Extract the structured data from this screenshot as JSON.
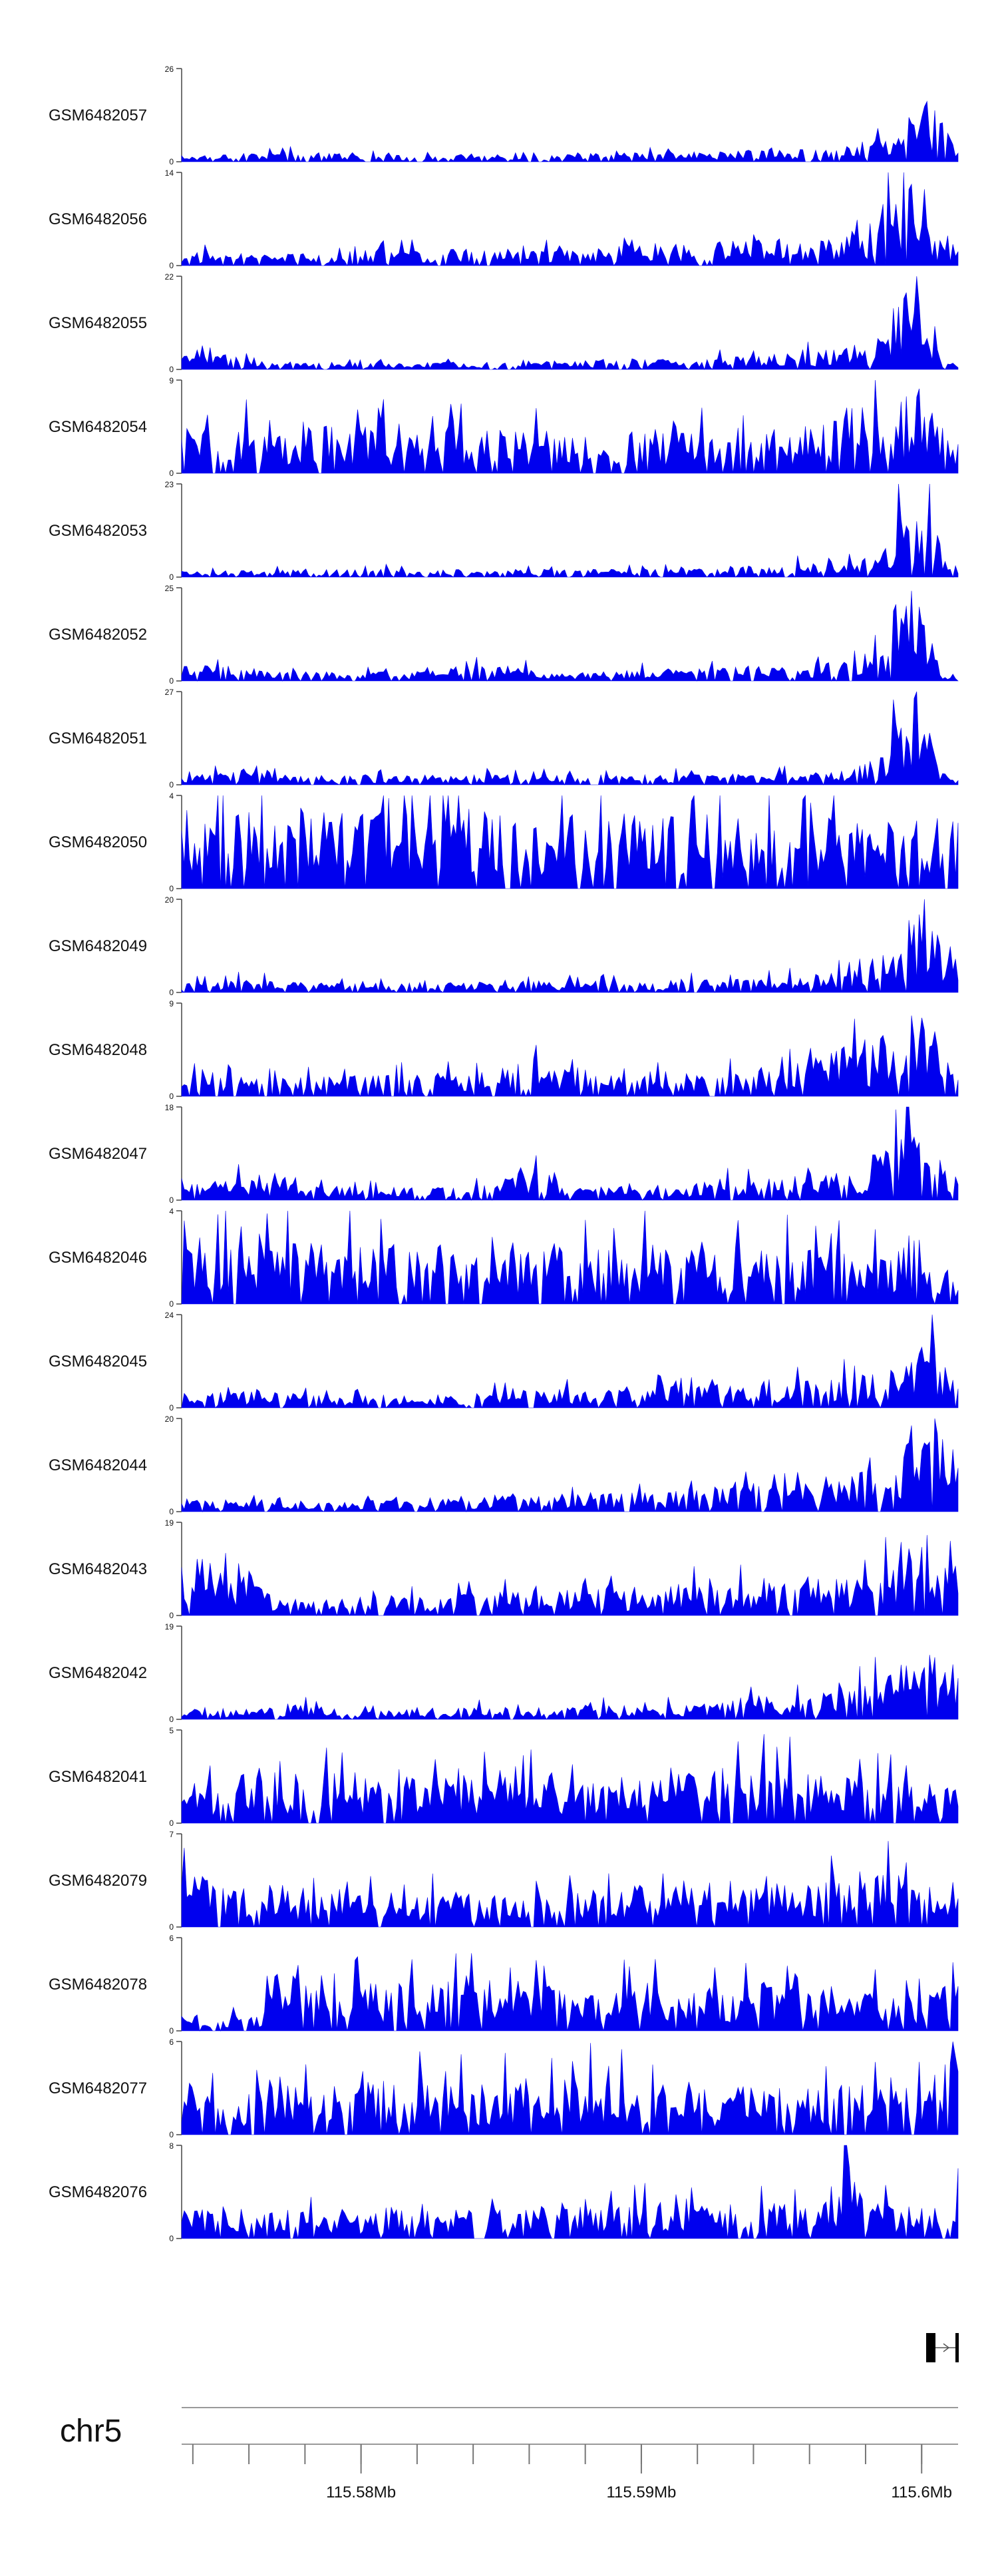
{
  "colors": {
    "signal": "#0000ee",
    "axis": "#444444",
    "text": "#111111",
    "genome_line": "#999999"
  },
  "chart_data": {
    "type": "area",
    "title": "",
    "xlabel": "",
    "ylabel": "",
    "x_range_mb": [
      115.5736,
      115.6013
    ],
    "tracks": [
      {
        "name": "GSM6482057",
        "ylim": [
          0,
          26
        ],
        "yticks": [
          "0",
          "26"
        ],
        "profile": [
          [
            0,
            2
          ],
          [
            12,
            3
          ],
          [
            25,
            2
          ],
          [
            40,
            1.5
          ],
          [
            55,
            2.5
          ],
          [
            70,
            3
          ],
          [
            85,
            4
          ],
          [
            90,
            7
          ],
          [
            92,
            13
          ],
          [
            94,
            22
          ],
          [
            95,
            26
          ],
          [
            96,
            19
          ],
          [
            98,
            10
          ],
          [
            100,
            3
          ]
        ]
      },
      {
        "name": "GSM6482056",
        "ylim": [
          0,
          14
        ],
        "yticks": [
          "0",
          "14"
        ],
        "profile": [
          [
            0,
            2
          ],
          [
            15,
            2
          ],
          [
            30,
            2.5
          ],
          [
            50,
            2.5
          ],
          [
            65,
            3.5
          ],
          [
            75,
            4
          ],
          [
            84,
            4.5
          ],
          [
            89,
            6
          ],
          [
            91,
            11
          ],
          [
            93,
            14
          ],
          [
            95,
            9
          ],
          [
            97,
            4
          ],
          [
            100,
            3
          ]
        ]
      },
      {
        "name": "GSM6482055",
        "ylim": [
          0,
          22
        ],
        "yticks": [
          "0",
          "22"
        ],
        "profile": [
          [
            0,
            5
          ],
          [
            5,
            4.5
          ],
          [
            10,
            2
          ],
          [
            25,
            1.5
          ],
          [
            45,
            2
          ],
          [
            65,
            2.5
          ],
          [
            80,
            4
          ],
          [
            88,
            6
          ],
          [
            90,
            10
          ],
          [
            92,
            20
          ],
          [
            94,
            22
          ],
          [
            96,
            13
          ],
          [
            98,
            2
          ],
          [
            100,
            1
          ]
        ]
      },
      {
        "name": "GSM6482054",
        "ylim": [
          0,
          9
        ],
        "yticks": [
          "0",
          "9"
        ],
        "profile": [
          [
            0,
            4.5
          ],
          [
            20,
            4.5
          ],
          [
            40,
            4.5
          ],
          [
            60,
            4
          ],
          [
            75,
            4.5
          ],
          [
            84,
            5.5
          ],
          [
            88,
            7.5
          ],
          [
            92,
            6.5
          ],
          [
            95,
            8.5
          ],
          [
            98,
            4.5
          ],
          [
            100,
            4
          ]
        ]
      },
      {
        "name": "GSM6482053",
        "ylim": [
          0,
          23
        ],
        "yticks": [
          "0",
          "23"
        ],
        "profile": [
          [
            0,
            1.5
          ],
          [
            20,
            2
          ],
          [
            40,
            2
          ],
          [
            60,
            2
          ],
          [
            75,
            3
          ],
          [
            85,
            4
          ],
          [
            90,
            7
          ],
          [
            93,
            18
          ],
          [
            95,
            23
          ],
          [
            97,
            13
          ],
          [
            99,
            3
          ],
          [
            100,
            2
          ]
        ]
      },
      {
        "name": "GSM6482052",
        "ylim": [
          0,
          25
        ],
        "yticks": [
          "0",
          "25"
        ],
        "profile": [
          [
            0,
            4
          ],
          [
            6,
            5
          ],
          [
            12,
            2.5
          ],
          [
            30,
            2.5
          ],
          [
            40,
            5
          ],
          [
            50,
            2
          ],
          [
            65,
            4
          ],
          [
            80,
            4.5
          ],
          [
            88,
            6
          ],
          [
            92,
            15
          ],
          [
            94,
            25
          ],
          [
            96,
            15
          ],
          [
            98,
            3
          ],
          [
            100,
            1.5
          ]
        ]
      },
      {
        "name": "GSM6482051",
        "ylim": [
          0,
          27
        ],
        "yticks": [
          "0",
          "27"
        ],
        "profile": [
          [
            0,
            3
          ],
          [
            8,
            5
          ],
          [
            15,
            2.5
          ],
          [
            35,
            3
          ],
          [
            55,
            3
          ],
          [
            70,
            3
          ],
          [
            85,
            4
          ],
          [
            90,
            8
          ],
          [
            92,
            18
          ],
          [
            94,
            27
          ],
          [
            96,
            18
          ],
          [
            98,
            4
          ],
          [
            100,
            1.5
          ]
        ]
      },
      {
        "name": "GSM6482050",
        "ylim": [
          0,
          4
        ],
        "yticks": [
          "0",
          "4"
        ],
        "profile": [
          [
            0,
            3
          ],
          [
            15,
            3.5
          ],
          [
            30,
            3.2
          ],
          [
            50,
            3.2
          ],
          [
            58,
            3.8
          ],
          [
            62,
            3.2
          ],
          [
            75,
            3
          ],
          [
            90,
            3
          ],
          [
            100,
            3
          ]
        ]
      },
      {
        "name": "GSM6482049",
        "ylim": [
          0,
          20
        ],
        "yticks": [
          "0",
          "20"
        ],
        "profile": [
          [
            0,
            2.5
          ],
          [
            10,
            3
          ],
          [
            20,
            2
          ],
          [
            40,
            2.5
          ],
          [
            60,
            2.5
          ],
          [
            75,
            3
          ],
          [
            88,
            5
          ],
          [
            92,
            12
          ],
          [
            95,
            20
          ],
          [
            97,
            12
          ],
          [
            100,
            4
          ]
        ]
      },
      {
        "name": "GSM6482048",
        "ylim": [
          0,
          9
        ],
        "yticks": [
          "0",
          "9"
        ],
        "profile": [
          [
            0,
            2
          ],
          [
            20,
            2
          ],
          [
            40,
            2.5
          ],
          [
            45,
            4
          ],
          [
            55,
            2
          ],
          [
            70,
            2.5
          ],
          [
            80,
            3.5
          ],
          [
            90,
            6
          ],
          [
            94,
            8.5
          ],
          [
            96,
            6
          ],
          [
            100,
            3
          ]
        ]
      },
      {
        "name": "GSM6482047",
        "ylim": [
          0,
          18
        ],
        "yticks": [
          "0",
          "18"
        ],
        "profile": [
          [
            0,
            3
          ],
          [
            8,
            5
          ],
          [
            15,
            3
          ],
          [
            25,
            2.5
          ],
          [
            40,
            3
          ],
          [
            45,
            7
          ],
          [
            50,
            2.5
          ],
          [
            60,
            2.5
          ],
          [
            70,
            4
          ],
          [
            80,
            5
          ],
          [
            88,
            6
          ],
          [
            92,
            14
          ],
          [
            94,
            18
          ],
          [
            96,
            10
          ],
          [
            100,
            5
          ]
        ]
      },
      {
        "name": "GSM6482046",
        "ylim": [
          0,
          4
        ],
        "yticks": [
          "0",
          "4"
        ],
        "profile": [
          [
            0,
            2.5
          ],
          [
            15,
            2.8
          ],
          [
            30,
            2.5
          ],
          [
            45,
            2.5
          ],
          [
            60,
            2.6
          ],
          [
            75,
            2.5
          ],
          [
            90,
            2.2
          ],
          [
            100,
            1.8
          ]
        ]
      },
      {
        "name": "GSM6482045",
        "ylim": [
          0,
          24
        ],
        "yticks": [
          "0",
          "24"
        ],
        "profile": [
          [
            0,
            4
          ],
          [
            10,
            4.5
          ],
          [
            20,
            3
          ],
          [
            35,
            4
          ],
          [
            50,
            5
          ],
          [
            65,
            6
          ],
          [
            80,
            7
          ],
          [
            90,
            9
          ],
          [
            94,
            14
          ],
          [
            96,
            24
          ],
          [
            98,
            13
          ],
          [
            100,
            6
          ]
        ]
      },
      {
        "name": "GSM6482044",
        "ylim": [
          0,
          20
        ],
        "yticks": [
          "0",
          "20"
        ],
        "profile": [
          [
            0,
            3
          ],
          [
            15,
            2
          ],
          [
            30,
            3
          ],
          [
            45,
            4
          ],
          [
            60,
            4.5
          ],
          [
            75,
            6
          ],
          [
            85,
            8
          ],
          [
            92,
            12
          ],
          [
            96,
            19
          ],
          [
            98,
            14
          ],
          [
            100,
            9
          ]
        ]
      },
      {
        "name": "GSM6482043",
        "ylim": [
          0,
          19
        ],
        "yticks": [
          "0",
          "19"
        ],
        "profile": [
          [
            0,
            12
          ],
          [
            5,
            13
          ],
          [
            9,
            11
          ],
          [
            12,
            4.5
          ],
          [
            30,
            4
          ],
          [
            45,
            5
          ],
          [
            60,
            6
          ],
          [
            75,
            7
          ],
          [
            85,
            8
          ],
          [
            92,
            12
          ],
          [
            95,
            19
          ],
          [
            97,
            14
          ],
          [
            100,
            10
          ]
        ]
      },
      {
        "name": "GSM6482042",
        "ylim": [
          0,
          19
        ],
        "yticks": [
          "0",
          "19"
        ],
        "profile": [
          [
            0,
            2.5
          ],
          [
            10,
            2.5
          ],
          [
            15,
            3.5
          ],
          [
            20,
            1.5
          ],
          [
            35,
            2.5
          ],
          [
            50,
            2.5
          ],
          [
            65,
            3.5
          ],
          [
            75,
            5
          ],
          [
            85,
            6.5
          ],
          [
            92,
            10
          ],
          [
            96,
            17
          ],
          [
            98,
            10
          ],
          [
            100,
            8
          ]
        ]
      },
      {
        "name": "GSM6482041",
        "ylim": [
          0,
          5
        ],
        "yticks": [
          "0",
          "5"
        ],
        "profile": [
          [
            0,
            2.5
          ],
          [
            15,
            2.8
          ],
          [
            30,
            2.7
          ],
          [
            50,
            2.6
          ],
          [
            65,
            2.9
          ],
          [
            75,
            3.2
          ],
          [
            85,
            2.5
          ],
          [
            95,
            2.2
          ],
          [
            100,
            2
          ]
        ]
      },
      {
        "name": "GSM6482079",
        "ylim": [
          0,
          7
        ],
        "yticks": [
          "0",
          "7"
        ],
        "profile": [
          [
            0,
            4.5
          ],
          [
            15,
            3
          ],
          [
            30,
            2.5
          ],
          [
            50,
            3
          ],
          [
            65,
            3.5
          ],
          [
            80,
            3.5
          ],
          [
            90,
            4
          ],
          [
            94,
            6
          ],
          [
            96,
            3.5
          ],
          [
            100,
            2.5
          ]
        ]
      },
      {
        "name": "GSM6482078",
        "ylim": [
          0,
          6
        ],
        "yticks": [
          "0",
          "6"
        ],
        "profile": [
          [
            0,
            1
          ],
          [
            10,
            1
          ],
          [
            12,
            4
          ],
          [
            20,
            3
          ],
          [
            35,
            3.5
          ],
          [
            50,
            3
          ],
          [
            65,
            3
          ],
          [
            80,
            3
          ],
          [
            90,
            2.5
          ],
          [
            97,
            2.5
          ],
          [
            100,
            5.5
          ]
        ]
      },
      {
        "name": "GSM6482077",
        "ylim": [
          0,
          6
        ],
        "yticks": [
          "0",
          "6"
        ],
        "profile": [
          [
            0,
            2.5
          ],
          [
            20,
            3.5
          ],
          [
            40,
            3.5
          ],
          [
            55,
            3.8
          ],
          [
            70,
            3.3
          ],
          [
            85,
            3.3
          ],
          [
            95,
            3
          ],
          [
            100,
            5.5
          ]
        ]
      },
      {
        "name": "GSM6482076",
        "ylim": [
          0,
          8
        ],
        "yticks": [
          "0",
          "8"
        ],
        "profile": [
          [
            0,
            2.5
          ],
          [
            20,
            2.5
          ],
          [
            40,
            2.5
          ],
          [
            60,
            3
          ],
          [
            75,
            3
          ],
          [
            84,
            3.5
          ],
          [
            85.5,
            7.5
          ],
          [
            88,
            3
          ],
          [
            95,
            3
          ],
          [
            100,
            4
          ]
        ]
      }
    ],
    "genome_axis": {
      "chromosome": "chr5",
      "ticks": [
        {
          "mb": 115.58,
          "label": "115.58Mb"
        },
        {
          "mb": 115.59,
          "label": "115.59Mb"
        },
        {
          "mb": 115.6,
          "label": "115.6Mb"
        }
      ]
    }
  }
}
